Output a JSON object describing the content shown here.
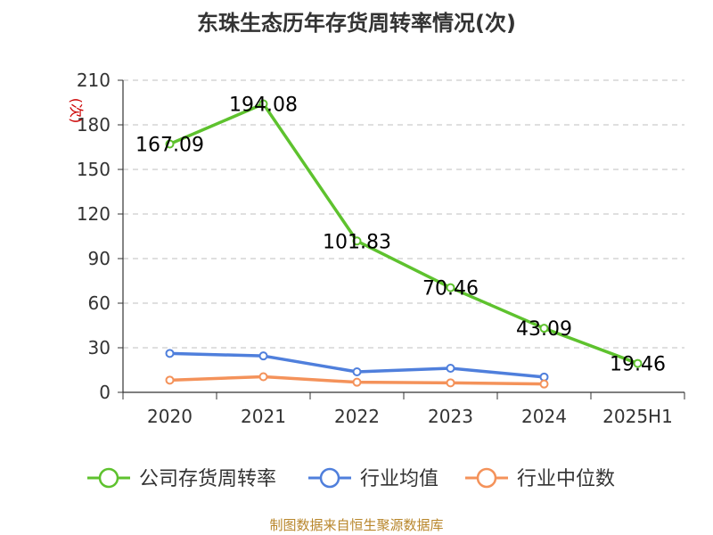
{
  "chart_data": {
    "type": "line",
    "title": "东珠生态历年存货周转率情况(次)",
    "ylabel": "(次)",
    "ylim": [
      0,
      210
    ],
    "yticks": [
      0,
      30,
      60,
      90,
      120,
      150,
      180,
      210
    ],
    "grid": true,
    "legend_position": "bottom",
    "categories": [
      "2020",
      "2021",
      "2022",
      "2023",
      "2024",
      "2025H1"
    ],
    "series": [
      {
        "name": "公司存货周转率",
        "color": "#5ec22e",
        "values": [
          167.09,
          194.08,
          101.83,
          70.46,
          43.09,
          19.46
        ],
        "labels": [
          "167.09",
          "194.08",
          "101.83",
          "70.46",
          "43.09",
          "19.46"
        ]
      },
      {
        "name": "行业均值",
        "color": "#4f7fdc",
        "values": [
          26.2,
          24.5,
          13.8,
          16.2,
          10.3,
          null
        ]
      },
      {
        "name": "行业中位数",
        "color": "#f4925a",
        "values": [
          8.2,
          10.5,
          6.8,
          6.4,
          5.6,
          null
        ]
      }
    ]
  },
  "source_note": "制图数据来自恒生聚源数据库"
}
